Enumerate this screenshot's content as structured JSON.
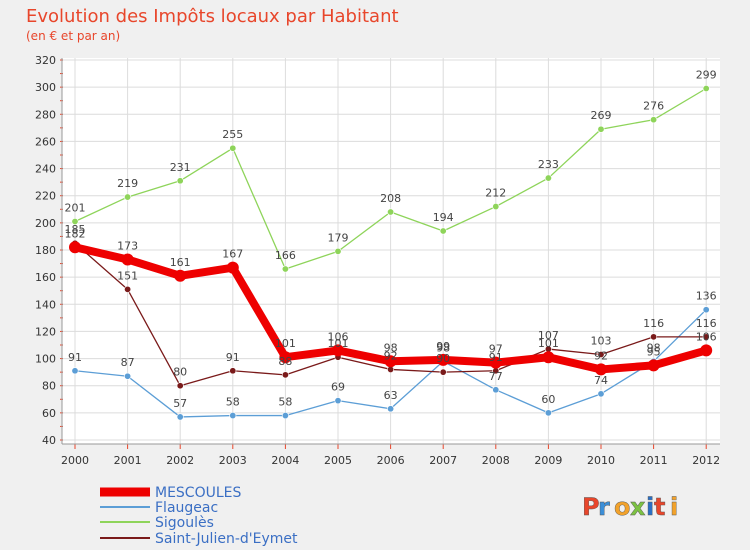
{
  "chart_data": {
    "type": "line",
    "title": "Evolution des Impôts locaux par Habitant",
    "subtitle": "(en € et par an)",
    "xlabel": "",
    "ylabel": "",
    "categories": [
      "2000",
      "2001",
      "2002",
      "2003",
      "2004",
      "2005",
      "2006",
      "2007",
      "2008",
      "2009",
      "2010",
      "2011",
      "2012"
    ],
    "ylim": [
      40,
      320
    ],
    "yticks": [
      40,
      60,
      80,
      100,
      120,
      140,
      160,
      180,
      200,
      220,
      240,
      260,
      280,
      300,
      320
    ],
    "grid": true,
    "legend_position": "bottom-left",
    "series": [
      {
        "name": "MESCOULES",
        "color": "#ee0000",
        "values": [
          182,
          173,
          161,
          167,
          101,
          106,
          98,
          99,
          97,
          101,
          92,
          95,
          106
        ]
      },
      {
        "name": "Flaugeac",
        "color": "#5c9ed6",
        "values": [
          91,
          87,
          57,
          58,
          58,
          69,
          63,
          98,
          77,
          60,
          74,
          98,
          136
        ]
      },
      {
        "name": "Sigoulès",
        "color": "#8ed45a",
        "values": [
          201,
          219,
          231,
          255,
          166,
          179,
          208,
          194,
          212,
          233,
          269,
          276,
          299
        ]
      },
      {
        "name": "Saint-Julien-d'Eymet",
        "color": "#7a1a1a",
        "values": [
          185,
          151,
          80,
          91,
          88,
          101,
          92,
          90,
          91,
          107,
          103,
          116,
          116
        ]
      }
    ],
    "labeled_series": [
      "MESCOULES",
      "Flaugeac",
      "Sigoulès",
      "Saint-Julien-d'Eymet"
    ]
  },
  "logo": {
    "text": "Proxiti",
    "letter_colors": [
      "#e8462b",
      "#3c8fd8",
      "#f2a22b",
      "#7cc242",
      "#2b6fc4",
      "#e8462b",
      "#f2a22b"
    ]
  },
  "colors": {
    "background": "#f0f0f0",
    "plot_bg": "#ffffff",
    "grid": "#dcdcdc",
    "title": "#e8462b",
    "axis_text": "#333333",
    "label_text": "#444444"
  }
}
